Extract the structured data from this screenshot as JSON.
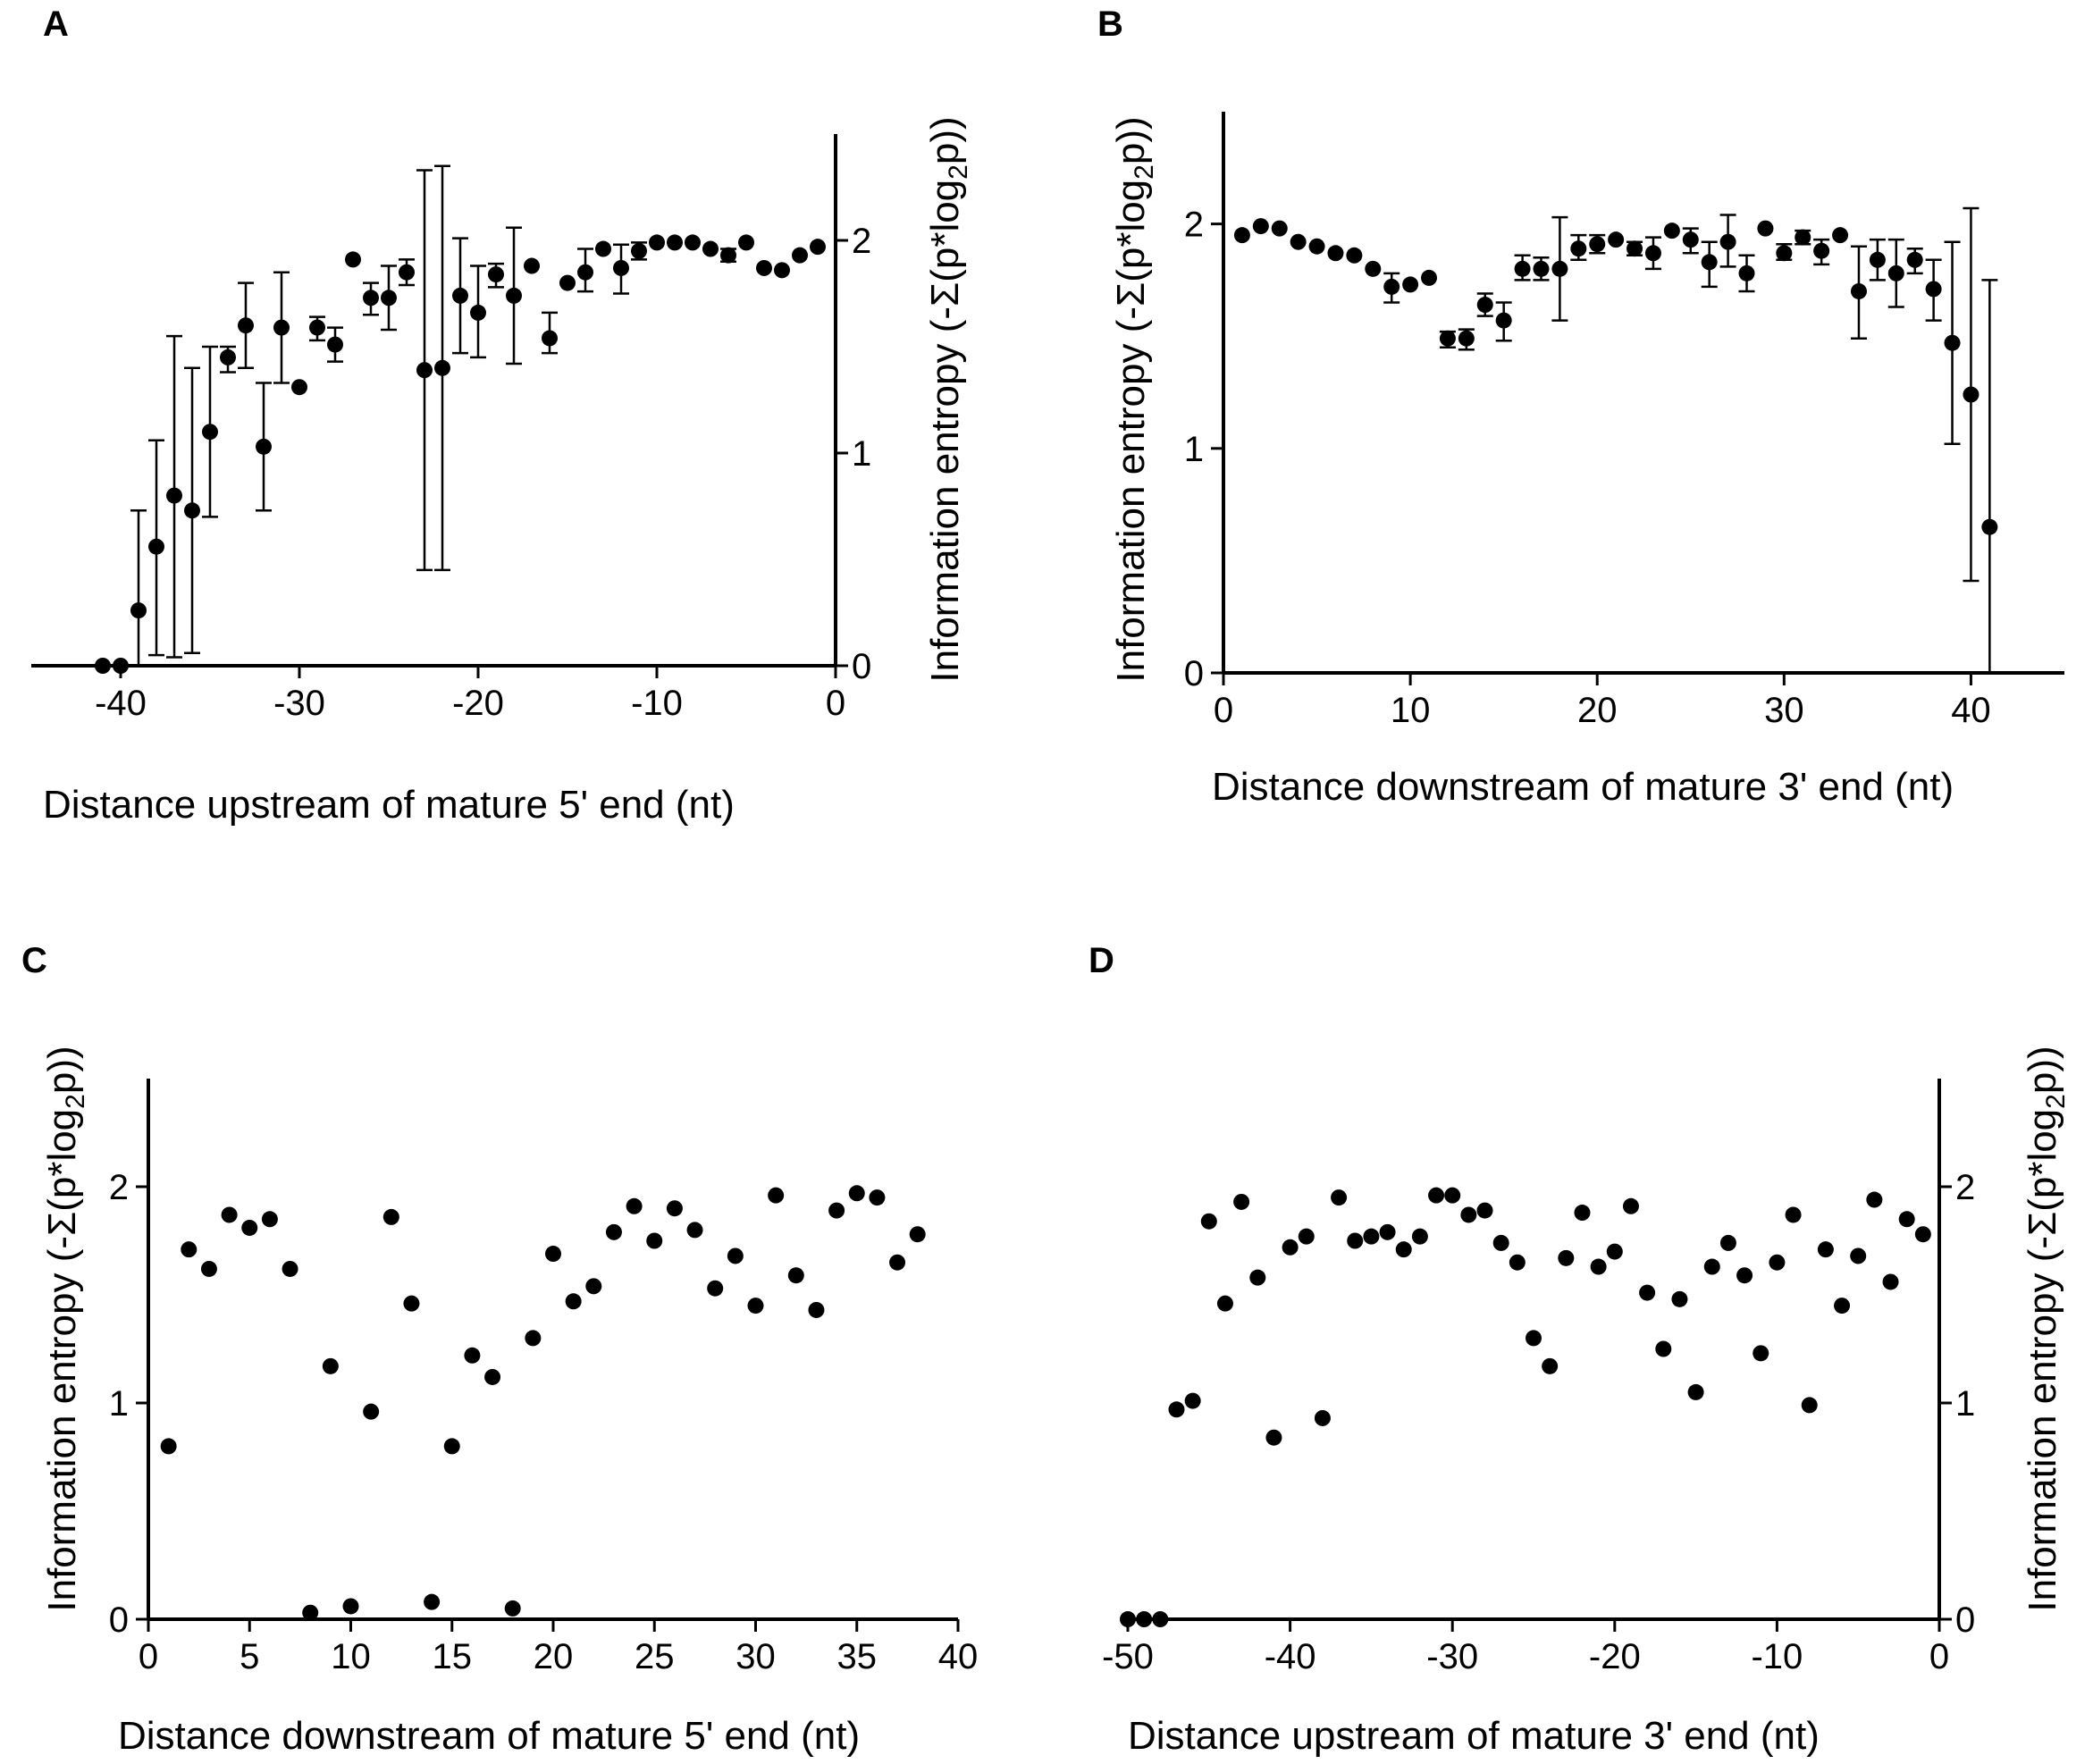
{
  "figure": {
    "panels": [
      "A",
      "B",
      "C",
      "D"
    ]
  },
  "chart_data": [
    {
      "panel": "A",
      "type": "scatter",
      "error_bars": true,
      "xlabel": "Distance upstream of mature 5' end (nt)",
      "ylabel": "Information entropy (-Σ(p*log2p))",
      "xlim": [
        -45,
        0
      ],
      "ylim": [
        0,
        2.5
      ],
      "xticks": [
        -40,
        -30,
        -20,
        -10,
        0
      ],
      "yticks": [
        0,
        1,
        2
      ],
      "y_axis_side": "right",
      "grid": false,
      "points": [
        {
          "x": -41,
          "y": 0.0
        },
        {
          "x": -40,
          "y": 0.0
        },
        {
          "x": -39,
          "y": 0.26,
          "lo": 0.0,
          "hi": 0.73
        },
        {
          "x": -38,
          "y": 0.56,
          "lo": 0.05,
          "hi": 1.06
        },
        {
          "x": -37,
          "y": 0.8,
          "lo": 0.04,
          "hi": 1.55
        },
        {
          "x": -36,
          "y": 0.73,
          "lo": 0.06,
          "hi": 1.4
        },
        {
          "x": -35,
          "y": 1.1,
          "lo": 0.7,
          "hi": 1.5
        },
        {
          "x": -34,
          "y": 1.45,
          "lo": 1.38,
          "hi": 1.5
        },
        {
          "x": -33,
          "y": 1.6,
          "lo": 1.4,
          "hi": 1.8
        },
        {
          "x": -32,
          "y": 1.03,
          "lo": 0.73,
          "hi": 1.33
        },
        {
          "x": -31,
          "y": 1.59,
          "lo": 1.33,
          "hi": 1.85
        },
        {
          "x": -30,
          "y": 1.31
        },
        {
          "x": -29,
          "y": 1.59,
          "lo": 1.53,
          "hi": 1.64
        },
        {
          "x": -28,
          "y": 1.51,
          "lo": 1.43,
          "hi": 1.59
        },
        {
          "x": -27,
          "y": 1.91
        },
        {
          "x": -26,
          "y": 1.73,
          "lo": 1.65,
          "hi": 1.8
        },
        {
          "x": -25,
          "y": 1.73,
          "lo": 1.58,
          "hi": 1.88
        },
        {
          "x": -24,
          "y": 1.85,
          "lo": 1.79,
          "hi": 1.91
        },
        {
          "x": -23,
          "y": 1.39,
          "lo": 0.45,
          "hi": 2.33
        },
        {
          "x": -22,
          "y": 1.4,
          "lo": 0.45,
          "hi": 2.35
        },
        {
          "x": -21,
          "y": 1.74,
          "lo": 1.47,
          "hi": 2.01
        },
        {
          "x": -20,
          "y": 1.66,
          "lo": 1.45,
          "hi": 1.88
        },
        {
          "x": -19,
          "y": 1.84,
          "lo": 1.78,
          "hi": 1.89
        },
        {
          "x": -18,
          "y": 1.74,
          "lo": 1.42,
          "hi": 2.06
        },
        {
          "x": -17,
          "y": 1.88
        },
        {
          "x": -16,
          "y": 1.54,
          "lo": 1.47,
          "hi": 1.66
        },
        {
          "x": -15,
          "y": 1.8
        },
        {
          "x": -14,
          "y": 1.85,
          "lo": 1.76,
          "hi": 1.96
        },
        {
          "x": -13,
          "y": 1.96
        },
        {
          "x": -12,
          "y": 1.87,
          "lo": 1.75,
          "hi": 1.98
        },
        {
          "x": -11,
          "y": 1.95,
          "lo": 1.91,
          "hi": 1.99
        },
        {
          "x": -10,
          "y": 1.99
        },
        {
          "x": -9,
          "y": 1.99
        },
        {
          "x": -8,
          "y": 1.99
        },
        {
          "x": -7,
          "y": 1.96
        },
        {
          "x": -6,
          "y": 1.93,
          "lo": 1.9,
          "hi": 1.96
        },
        {
          "x": -5,
          "y": 1.99
        },
        {
          "x": -4,
          "y": 1.87
        },
        {
          "x": -3,
          "y": 1.86
        },
        {
          "x": -2,
          "y": 1.93
        },
        {
          "x": -1,
          "y": 1.97
        }
      ]
    },
    {
      "panel": "B",
      "type": "scatter",
      "error_bars": true,
      "xlabel": "Distance downstream of mature 3' end (nt)",
      "ylabel": "Information entropy (-Σ(p*log2p))",
      "xlim": [
        0,
        45
      ],
      "ylim": [
        0,
        2.5
      ],
      "xticks": [
        0,
        10,
        20,
        30,
        40
      ],
      "yticks": [
        0,
        1,
        2
      ],
      "y_axis_side": "left",
      "grid": false,
      "points": [
        {
          "x": 1,
          "y": 1.95
        },
        {
          "x": 2,
          "y": 1.99
        },
        {
          "x": 3,
          "y": 1.98
        },
        {
          "x": 4,
          "y": 1.92
        },
        {
          "x": 5,
          "y": 1.9
        },
        {
          "x": 6,
          "y": 1.87
        },
        {
          "x": 7,
          "y": 1.86
        },
        {
          "x": 8,
          "y": 1.8
        },
        {
          "x": 9,
          "y": 1.72,
          "lo": 1.65,
          "hi": 1.78
        },
        {
          "x": 10,
          "y": 1.73
        },
        {
          "x": 11,
          "y": 1.76
        },
        {
          "x": 12,
          "y": 1.49,
          "lo": 1.45,
          "hi": 1.52
        },
        {
          "x": 13,
          "y": 1.49,
          "lo": 1.44,
          "hi": 1.53
        },
        {
          "x": 14,
          "y": 1.64,
          "lo": 1.59,
          "hi": 1.69
        },
        {
          "x": 15,
          "y": 1.57,
          "lo": 1.48,
          "hi": 1.65
        },
        {
          "x": 16,
          "y": 1.8,
          "lo": 1.75,
          "hi": 1.86
        },
        {
          "x": 17,
          "y": 1.8,
          "lo": 1.75,
          "hi": 1.85
        },
        {
          "x": 18,
          "y": 1.8,
          "lo": 1.57,
          "hi": 2.03
        },
        {
          "x": 19,
          "y": 1.89,
          "lo": 1.84,
          "hi": 1.95
        },
        {
          "x": 20,
          "y": 1.91,
          "lo": 1.87,
          "hi": 1.95
        },
        {
          "x": 21,
          "y": 1.93
        },
        {
          "x": 22,
          "y": 1.89,
          "lo": 1.86,
          "hi": 1.92
        },
        {
          "x": 23,
          "y": 1.87,
          "lo": 1.8,
          "hi": 1.94
        },
        {
          "x": 24,
          "y": 1.97
        },
        {
          "x": 25,
          "y": 1.93,
          "lo": 1.87,
          "hi": 1.98
        },
        {
          "x": 26,
          "y": 1.83,
          "lo": 1.72,
          "hi": 1.92
        },
        {
          "x": 27,
          "y": 1.92,
          "lo": 1.81,
          "hi": 2.04
        },
        {
          "x": 28,
          "y": 1.78,
          "lo": 1.7,
          "hi": 1.86
        },
        {
          "x": 29,
          "y": 1.98
        },
        {
          "x": 30,
          "y": 1.87,
          "lo": 1.84,
          "hi": 1.91
        },
        {
          "x": 31,
          "y": 1.94,
          "lo": 1.91,
          "hi": 1.97
        },
        {
          "x": 32,
          "y": 1.88,
          "lo": 1.82,
          "hi": 1.93
        },
        {
          "x": 33,
          "y": 1.95
        },
        {
          "x": 34,
          "y": 1.7,
          "lo": 1.49,
          "hi": 1.9
        },
        {
          "x": 35,
          "y": 1.84,
          "lo": 1.75,
          "hi": 1.93
        },
        {
          "x": 36,
          "y": 1.78,
          "lo": 1.63,
          "hi": 1.93
        },
        {
          "x": 37,
          "y": 1.84,
          "lo": 1.78,
          "hi": 1.89
        },
        {
          "x": 38,
          "y": 1.71,
          "lo": 1.57,
          "hi": 1.84
        },
        {
          "x": 39,
          "y": 1.47,
          "lo": 1.02,
          "hi": 1.92
        },
        {
          "x": 40,
          "y": 1.24,
          "lo": 0.41,
          "hi": 2.07
        },
        {
          "x": 41,
          "y": 0.65,
          "lo": 0.0,
          "hi": 1.75
        }
      ]
    },
    {
      "panel": "C",
      "type": "scatter",
      "error_bars": false,
      "xlabel": "Distance downstream of mature 5' end (nt)",
      "ylabel": "Information entropy (-Σ(p*log2p))",
      "xlim": [
        0,
        40
      ],
      "ylim": [
        0,
        2.5
      ],
      "xticks": [
        0,
        5,
        10,
        15,
        20,
        25,
        30,
        35,
        40
      ],
      "yticks": [
        0,
        1,
        2
      ],
      "y_axis_side": "left",
      "grid": false,
      "points": [
        {
          "x": 1,
          "y": 0.8
        },
        {
          "x": 2,
          "y": 1.71
        },
        {
          "x": 3,
          "y": 1.62
        },
        {
          "x": 4,
          "y": 1.87
        },
        {
          "x": 5,
          "y": 1.81
        },
        {
          "x": 6,
          "y": 1.85
        },
        {
          "x": 7,
          "y": 1.62
        },
        {
          "x": 8,
          "y": 0.03
        },
        {
          "x": 9,
          "y": 1.17
        },
        {
          "x": 10,
          "y": 0.06
        },
        {
          "x": 11,
          "y": 0.96
        },
        {
          "x": 12,
          "y": 1.86
        },
        {
          "x": 13,
          "y": 1.46
        },
        {
          "x": 14,
          "y": 0.08
        },
        {
          "x": 15,
          "y": 0.8
        },
        {
          "x": 16,
          "y": 1.22
        },
        {
          "x": 17,
          "y": 1.12
        },
        {
          "x": 18,
          "y": 0.05
        },
        {
          "x": 19,
          "y": 1.3
        },
        {
          "x": 20,
          "y": 1.69
        },
        {
          "x": 21,
          "y": 1.47
        },
        {
          "x": 22,
          "y": 1.54
        },
        {
          "x": 23,
          "y": 1.79
        },
        {
          "x": 24,
          "y": 1.91
        },
        {
          "x": 25,
          "y": 1.75
        },
        {
          "x": 26,
          "y": 1.9
        },
        {
          "x": 27,
          "y": 1.8
        },
        {
          "x": 28,
          "y": 1.53
        },
        {
          "x": 29,
          "y": 1.68
        },
        {
          "x": 30,
          "y": 1.45
        },
        {
          "x": 31,
          "y": 1.96
        },
        {
          "x": 32,
          "y": 1.59
        },
        {
          "x": 33,
          "y": 1.43
        },
        {
          "x": 34,
          "y": 1.89
        },
        {
          "x": 35,
          "y": 1.97
        },
        {
          "x": 36,
          "y": 1.95
        },
        {
          "x": 37,
          "y": 1.65
        },
        {
          "x": 38,
          "y": 1.78
        }
      ]
    },
    {
      "panel": "D",
      "type": "scatter",
      "error_bars": false,
      "xlabel": "Distance upstream of mature 3' end (nt)",
      "ylabel": "Information entropy (-Σ(p*log2p))",
      "xlim": [
        -50,
        0
      ],
      "ylim": [
        0,
        2.5
      ],
      "xticks": [
        -50,
        -40,
        -30,
        -20,
        -10,
        0
      ],
      "yticks": [
        0,
        1,
        2
      ],
      "y_axis_side": "right",
      "grid": false,
      "points": [
        {
          "x": -50,
          "y": 0.0
        },
        {
          "x": -49,
          "y": 0.0
        },
        {
          "x": -48,
          "y": 0.0
        },
        {
          "x": -47,
          "y": 0.97
        },
        {
          "x": -46,
          "y": 1.01
        },
        {
          "x": -45,
          "y": 1.84
        },
        {
          "x": -44,
          "y": 1.46
        },
        {
          "x": -43,
          "y": 1.93
        },
        {
          "x": -42,
          "y": 1.58
        },
        {
          "x": -41,
          "y": 0.84
        },
        {
          "x": -40,
          "y": 1.72
        },
        {
          "x": -39,
          "y": 1.77
        },
        {
          "x": -38,
          "y": 0.93
        },
        {
          "x": -37,
          "y": 1.95
        },
        {
          "x": -36,
          "y": 1.75
        },
        {
          "x": -35,
          "y": 1.77
        },
        {
          "x": -34,
          "y": 1.79
        },
        {
          "x": -33,
          "y": 1.71
        },
        {
          "x": -32,
          "y": 1.77
        },
        {
          "x": -31,
          "y": 1.96
        },
        {
          "x": -30,
          "y": 1.96
        },
        {
          "x": -29,
          "y": 1.87
        },
        {
          "x": -28,
          "y": 1.89
        },
        {
          "x": -27,
          "y": 1.74
        },
        {
          "x": -26,
          "y": 1.65
        },
        {
          "x": -25,
          "y": 1.3
        },
        {
          "x": -24,
          "y": 1.17
        },
        {
          "x": -23,
          "y": 1.67
        },
        {
          "x": -22,
          "y": 1.88
        },
        {
          "x": -21,
          "y": 1.63
        },
        {
          "x": -20,
          "y": 1.7
        },
        {
          "x": -19,
          "y": 1.91
        },
        {
          "x": -18,
          "y": 1.51
        },
        {
          "x": -17,
          "y": 1.25
        },
        {
          "x": -16,
          "y": 1.48
        },
        {
          "x": -15,
          "y": 1.05
        },
        {
          "x": -14,
          "y": 1.63
        },
        {
          "x": -13,
          "y": 1.74
        },
        {
          "x": -12,
          "y": 1.59
        },
        {
          "x": -11,
          "y": 1.23
        },
        {
          "x": -10,
          "y": 1.65
        },
        {
          "x": -9,
          "y": 1.87
        },
        {
          "x": -8,
          "y": 0.99
        },
        {
          "x": -7,
          "y": 1.71
        },
        {
          "x": -6,
          "y": 1.45
        },
        {
          "x": -5,
          "y": 1.68
        },
        {
          "x": -4,
          "y": 1.94
        },
        {
          "x": -3,
          "y": 1.56
        },
        {
          "x": -2,
          "y": 1.85
        },
        {
          "x": -1,
          "y": 1.78
        }
      ]
    }
  ]
}
